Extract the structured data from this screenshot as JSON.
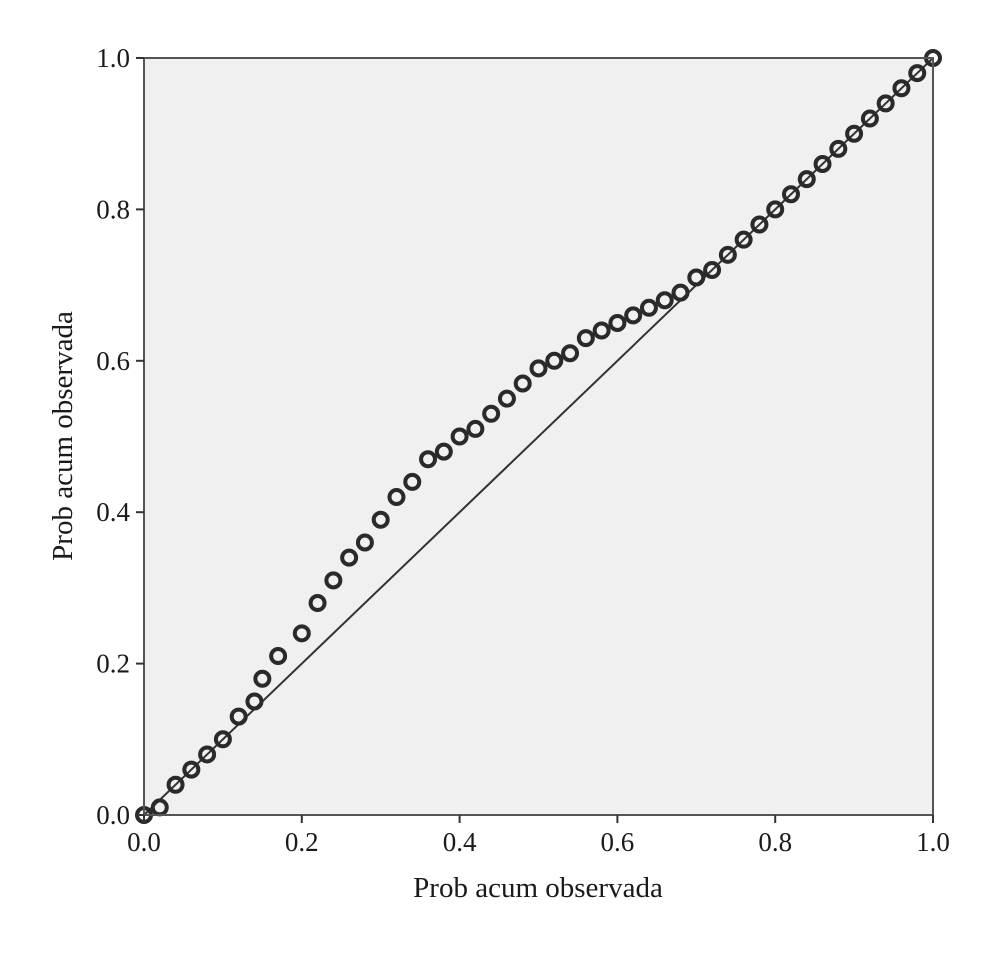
{
  "chart_data": {
    "type": "scatter",
    "title": "",
    "xlabel": "Prob acum observada",
    "ylabel": "Prob acum observada",
    "xlim": [
      0.0,
      1.0
    ],
    "ylim": [
      0.0,
      1.0
    ],
    "x_ticks": [
      "0.0",
      "0.2",
      "0.4",
      "0.6",
      "0.8",
      "1.0"
    ],
    "y_ticks": [
      "0.0",
      "0.2",
      "0.4",
      "0.6",
      "0.8",
      "1.0"
    ],
    "grid": false,
    "legend": "none",
    "plot_background": "#f0f0f0",
    "marker_color": "#2a2a2a",
    "reference_line": {
      "type": "diagonal",
      "from": [
        0.0,
        0.0
      ],
      "to": [
        1.0,
        1.0
      ],
      "color": "#333333"
    },
    "series": [
      {
        "marker": "open-circle",
        "x": [
          0.0,
          0.02,
          0.04,
          0.06,
          0.08,
          0.1,
          0.12,
          0.14,
          0.15,
          0.17,
          0.2,
          0.22,
          0.24,
          0.26,
          0.28,
          0.3,
          0.32,
          0.34,
          0.36,
          0.38,
          0.4,
          0.42,
          0.44,
          0.46,
          0.48,
          0.5,
          0.52,
          0.54,
          0.56,
          0.58,
          0.6,
          0.62,
          0.64,
          0.66,
          0.68,
          0.7,
          0.72,
          0.74,
          0.76,
          0.78,
          0.8,
          0.82,
          0.84,
          0.86,
          0.88,
          0.9,
          0.92,
          0.94,
          0.96,
          0.98,
          1.0
        ],
        "y": [
          0.0,
          0.01,
          0.04,
          0.06,
          0.08,
          0.1,
          0.13,
          0.15,
          0.18,
          0.21,
          0.24,
          0.28,
          0.31,
          0.34,
          0.36,
          0.39,
          0.42,
          0.44,
          0.47,
          0.48,
          0.5,
          0.51,
          0.53,
          0.55,
          0.57,
          0.59,
          0.6,
          0.61,
          0.63,
          0.64,
          0.65,
          0.66,
          0.67,
          0.68,
          0.69,
          0.71,
          0.72,
          0.74,
          0.76,
          0.78,
          0.8,
          0.82,
          0.84,
          0.86,
          0.88,
          0.9,
          0.92,
          0.94,
          0.96,
          0.98,
          1.0
        ]
      }
    ]
  }
}
